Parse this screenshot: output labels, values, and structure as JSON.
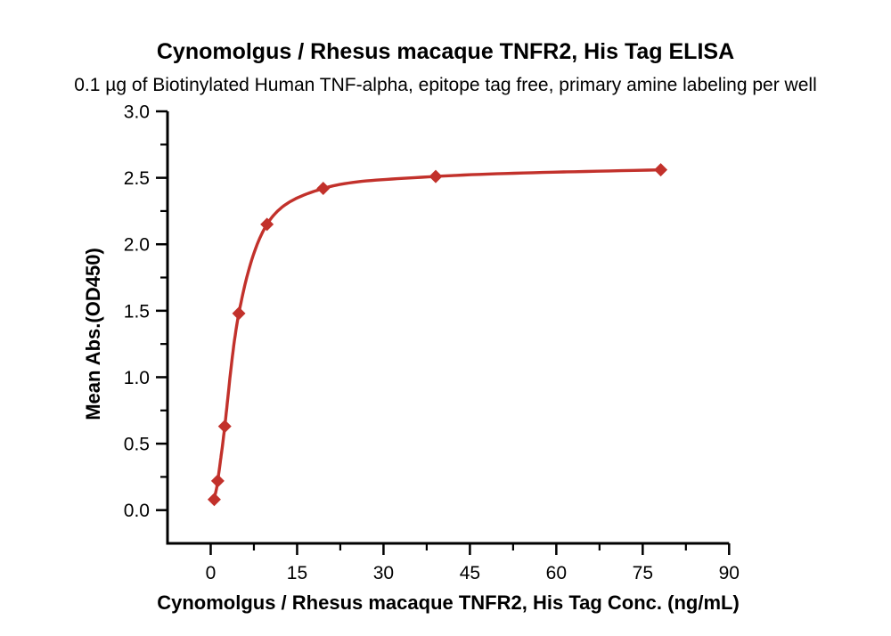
{
  "chart_data": {
    "type": "scatter",
    "title": "Cynomolgus / Rhesus macaque TNFR2, His Tag ELISA",
    "subtitle": "0.1 µg of Biotinylated Human TNF-alpha, epitope tag free, primary amine labeling per well",
    "xlabel": "Cynomolgus / Rhesus macaque TNFR2, His Tag Conc. (ng/mL)",
    "ylabel": "Mean Abs.(OD450)",
    "grid": false,
    "legend": false,
    "curve": "4PL sigmoidal fit through points",
    "series": [
      {
        "name": "Cynomolgus / Rhesus macaque TNFR2, His Tag",
        "marker": "diamond",
        "color": "#C2312B",
        "x": [
          0.61,
          1.22,
          2.44,
          4.88,
          9.77,
          19.53,
          39.06,
          78.13
        ],
        "y": [
          0.08,
          0.22,
          0.63,
          1.48,
          2.15,
          2.42,
          2.51,
          2.56
        ]
      }
    ],
    "x_axis": {
      "min": -7.5,
      "max": 90,
      "ticks": [
        0,
        15,
        30,
        45,
        60,
        75,
        90
      ],
      "tick_labels": [
        "0",
        "15",
        "30",
        "45",
        "60",
        "75",
        "90"
      ],
      "minor_step": 7.5
    },
    "y_axis": {
      "min": -0.25,
      "max": 3.0,
      "ticks": [
        0.0,
        0.5,
        1.0,
        1.5,
        2.0,
        2.5,
        3.0
      ],
      "tick_labels": [
        "0.0",
        "0.5",
        "1.0",
        "1.5",
        "2.0",
        "2.5",
        "3.0"
      ],
      "minor_step": 0.25
    },
    "colors": {
      "series": "#C2312B",
      "axis": "#000000",
      "text": "#000000",
      "background": "#FFFFFF"
    }
  }
}
